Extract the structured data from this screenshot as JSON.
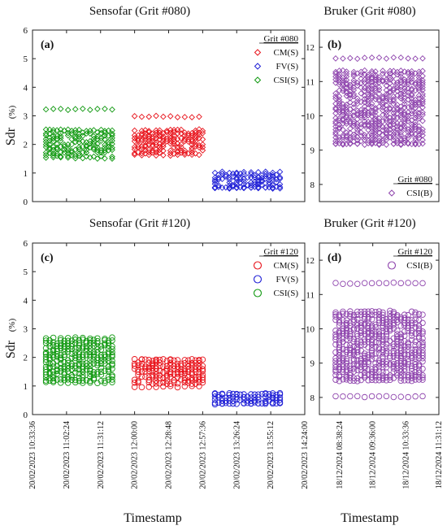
{
  "chart_data": [
    {
      "type": "scatter",
      "panel_label": "(a)",
      "title": "Sensofar (Grit #080)",
      "ylabel": "Sdr",
      "ylabel_unit": "(%)",
      "ylim": [
        0,
        6
      ],
      "yticks": [
        "0",
        "1",
        "2",
        "3",
        "4",
        "5",
        "6"
      ],
      "xticks": [
        "20/02/2023 10:33:36",
        "20/02/2023 11:02:24",
        "20/02/2023 11:31:12",
        "20/02/2023 12:00:00",
        "20/02/2023 12:28:48",
        "20/02/2023 12:57:36",
        "20/02/2023 13:26:24",
        "20/02/2023 13:55:12",
        "20/02/2023 14:24:00"
      ],
      "marker": "diamond",
      "legend_title": "Grit #080",
      "legend_position": "top-right",
      "series": [
        {
          "name": "CM(S)",
          "color": "#e8131b",
          "x_range": [
            "20/02/2023 12:00:00",
            "20/02/2023 12:57:36"
          ],
          "y_range": [
            1.6,
            3.0
          ],
          "y_bulk": [
            1.7,
            2.5
          ]
        },
        {
          "name": "FV(S)",
          "color": "#1f1fd6",
          "x_range": [
            "20/02/2023 13:08:00",
            "20/02/2023 14:03:00"
          ],
          "y_range": [
            0.45,
            1.05
          ],
          "y_bulk": [
            0.5,
            0.95
          ]
        },
        {
          "name": "CSI(S)",
          "color": "#119911",
          "x_range": [
            "20/02/2023 10:45:00",
            "20/02/2023 11:41:00"
          ],
          "y_range": [
            1.5,
            3.25
          ],
          "y_bulk": [
            1.6,
            2.5
          ]
        }
      ]
    },
    {
      "type": "scatter",
      "panel_label": "(b)",
      "title": "Bruker (Grit #080)",
      "ylim": [
        7.5,
        12.5
      ],
      "yticks": [
        "8",
        "9",
        "10",
        "11",
        "12"
      ],
      "marker": "diamond",
      "legend_title": "Grit #080",
      "legend_position": "bottom-right",
      "series": [
        {
          "name": "CSI(B)",
          "color": "#8e44ad",
          "y_range": [
            9.15,
            11.7
          ],
          "y_bulk": [
            9.2,
            11.3
          ]
        }
      ]
    },
    {
      "type": "scatter",
      "panel_label": "(c)",
      "title": "Sensofar (Grit #120)",
      "ylabel": "Sdr",
      "ylabel_unit": "(%)",
      "ylim": [
        0,
        6
      ],
      "yticks": [
        "0",
        "1",
        "2",
        "3",
        "4",
        "5",
        "6"
      ],
      "xticks": [
        "20/02/2023 10:33:36",
        "20/02/2023 11:02:24",
        "20/02/2023 11:31:12",
        "20/02/2023 12:00:00",
        "20/02/2023 12:28:48",
        "20/02/2023 12:57:36",
        "20/02/2023 13:26:24",
        "20/02/2023 13:55:12",
        "20/02/2023 14:24:00"
      ],
      "xlabel": "Timestamp",
      "marker": "circle",
      "legend_title": "Grit #120",
      "legend_position": "top-right",
      "series": [
        {
          "name": "CM(S)",
          "color": "#e8131b",
          "x_range": [
            "20/02/2023 12:00:00",
            "20/02/2023 12:57:36"
          ],
          "y_range": [
            0.95,
            1.95
          ],
          "y_bulk": [
            1.1,
            1.9
          ]
        },
        {
          "name": "FV(S)",
          "color": "#1f1fd6",
          "x_range": [
            "20/02/2023 13:08:00",
            "20/02/2023 14:03:00"
          ],
          "y_range": [
            0.35,
            0.75
          ],
          "y_bulk": [
            0.4,
            0.7
          ]
        },
        {
          "name": "CSI(S)",
          "color": "#119911",
          "x_range": [
            "20/02/2023 10:45:00",
            "20/02/2023 11:41:00"
          ],
          "y_range": [
            1.1,
            2.7
          ],
          "y_bulk": [
            1.2,
            2.6
          ]
        }
      ]
    },
    {
      "type": "scatter",
      "panel_label": "(d)",
      "title": "Bruker (Grit #120)",
      "ylim": [
        7.5,
        12.5
      ],
      "yticks": [
        "8",
        "9",
        "10",
        "11",
        "12"
      ],
      "xticks": [
        "18/12/2024 08:38:24",
        "18/12/2024 09:36:00",
        "18/12/2024 10:33:36",
        "18/12/2024 11:31:12"
      ],
      "xlabel": "Timestamp",
      "marker": "circle",
      "legend_title": "Grit #120",
      "legend_position": "top-right",
      "series": [
        {
          "name": "CSI(B)",
          "color": "#8e44ad",
          "y_range": [
            8.0,
            11.35
          ],
          "y_bulk": [
            8.5,
            10.5
          ]
        }
      ]
    }
  ]
}
